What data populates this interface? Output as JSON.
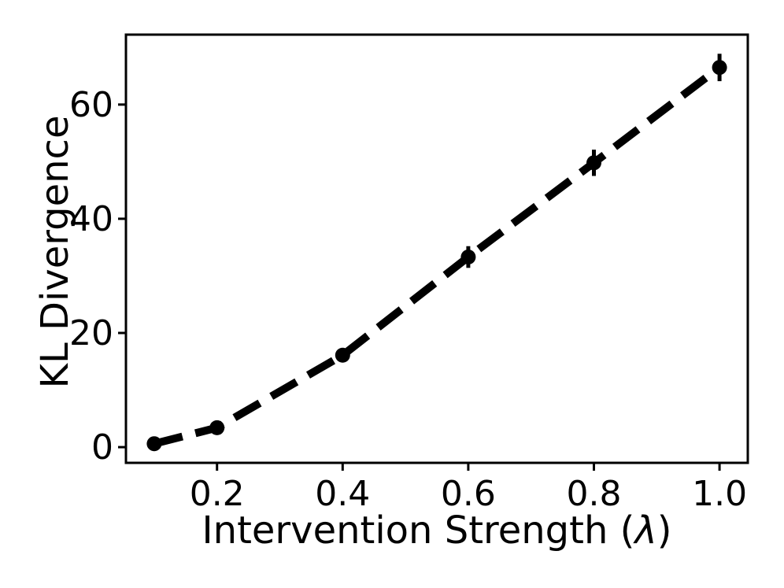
{
  "figure": {
    "background_color": "#ffffff",
    "line_color": "#000000",
    "marker_color": "#000000"
  },
  "chart_data": {
    "type": "line",
    "title": "",
    "xlabel": "Intervention Strength (λ)",
    "xlabel_parts": {
      "before": "Intervention Strength (",
      "symbol": "λ",
      "after": ")"
    },
    "ylabel": "KL Divergence",
    "x": [
      0.1,
      0.2,
      0.4,
      0.6,
      0.8,
      1.0
    ],
    "series": [
      {
        "name": "KL Divergence",
        "values": [
          0.6,
          3.4,
          16.1,
          33.3,
          49.8,
          66.5
        ],
        "yerr": [
          0.4,
          0.5,
          0.8,
          1.9,
          2.3,
          2.4
        ]
      }
    ],
    "xticks": [
      0.2,
      0.4,
      0.6,
      0.8,
      1.0
    ],
    "xtick_labels": [
      "0.2",
      "0.4",
      "0.6",
      "0.8",
      "1.0"
    ],
    "yticks": [
      0,
      20,
      40,
      60
    ],
    "ytick_labels": [
      "0",
      "20",
      "40",
      "60"
    ],
    "xlim": [
      0.055,
      1.045
    ],
    "ylim": [
      -2.75,
      72.25
    ],
    "grid": false,
    "legend": null,
    "line_style": "dashed",
    "marker": "circle",
    "color": "#000000"
  }
}
